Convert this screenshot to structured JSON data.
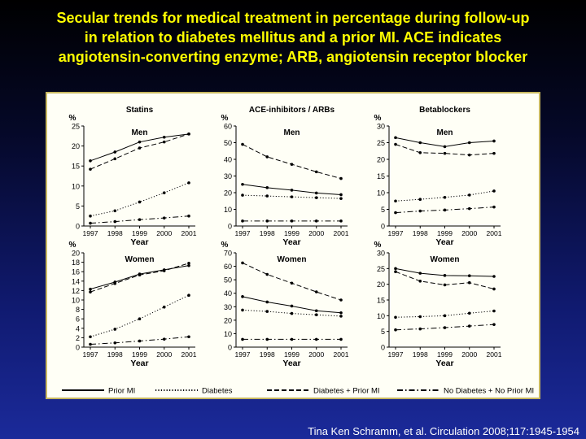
{
  "title": "Secular trends for medical treatment in percentage during follow-up\nin relation to diabetes mellitus and a prior MI. ACE indicates\nangiotensin-converting enzyme; ARB, angiotensin receptor blocker",
  "citation": "Tina Ken Schramm, et al. Circulation 2008;117:1945-1954",
  "colors": {
    "title": "#ffff00",
    "background_top": "#000000",
    "background_bottom": "#1b2a9a",
    "panel": "#fffff6"
  },
  "legend": [
    {
      "label": "Prior MI",
      "dash": "solid"
    },
    {
      "label": "Diabetes",
      "dash": "dotted"
    },
    {
      "label": "Diabetes + Prior MI",
      "dash": "dashed"
    },
    {
      "label": "No Diabetes + No Prior MI",
      "dash": "dashdot"
    }
  ],
  "chart_data": [
    {
      "type": "line",
      "title": "Statins",
      "subtitle": "Men",
      "ylabel": "%",
      "xlabel": "Year",
      "x": [
        "1997",
        "1998",
        "1999",
        "2000",
        "2001"
      ],
      "ylim": [
        0,
        25
      ],
      "yticks": [
        0,
        5,
        10,
        15,
        20,
        25
      ],
      "series": [
        {
          "name": "Prior MI",
          "values": [
            16.3,
            18.5,
            21.0,
            22.2,
            23.0
          ]
        },
        {
          "name": "Diabetes",
          "values": [
            2.5,
            3.8,
            6.0,
            8.3,
            10.8
          ]
        },
        {
          "name": "Diabetes + Prior MI",
          "values": [
            14.2,
            16.8,
            19.5,
            21.0,
            23.0
          ]
        },
        {
          "name": "No Diabetes + No Prior MI",
          "values": [
            0.7,
            1.1,
            1.6,
            2.0,
            2.5
          ]
        }
      ]
    },
    {
      "type": "line",
      "title": "ACE-inhibitors / ARBs",
      "subtitle": "Men",
      "ylabel": "%",
      "xlabel": "Year",
      "x": [
        "1997",
        "1998",
        "1999",
        "2000",
        "2001"
      ],
      "ylim": [
        0,
        60
      ],
      "yticks": [
        0,
        10,
        20,
        30,
        40,
        50,
        60
      ],
      "series": [
        {
          "name": "Prior MI",
          "values": [
            25.0,
            23.0,
            21.5,
            19.8,
            18.8
          ]
        },
        {
          "name": "Diabetes",
          "values": [
            18.5,
            18.0,
            17.5,
            17.0,
            16.5
          ]
        },
        {
          "name": "Diabetes + Prior MI",
          "values": [
            49.0,
            41.5,
            37.0,
            32.5,
            28.5
          ]
        },
        {
          "name": "No Diabetes + No Prior MI",
          "values": [
            3.0,
            3.0,
            3.0,
            3.0,
            3.0
          ]
        }
      ]
    },
    {
      "type": "line",
      "title": "Betablockers",
      "subtitle": "Men",
      "ylabel": "%",
      "xlabel": "Year",
      "x": [
        "1997",
        "1998",
        "1999",
        "2000",
        "2001"
      ],
      "ylim": [
        0,
        30
      ],
      "yticks": [
        0,
        5,
        10,
        15,
        20,
        25,
        30
      ],
      "series": [
        {
          "name": "Prior MI",
          "values": [
            26.5,
            25.0,
            23.8,
            25.0,
            25.5
          ]
        },
        {
          "name": "Diabetes",
          "values": [
            7.5,
            8.0,
            8.6,
            9.3,
            10.5
          ]
        },
        {
          "name": "Diabetes + Prior MI",
          "values": [
            24.5,
            22.0,
            21.8,
            21.3,
            21.8
          ]
        },
        {
          "name": "No Diabetes + No Prior MI",
          "values": [
            4.0,
            4.5,
            4.8,
            5.2,
            5.7
          ]
        }
      ]
    },
    {
      "type": "line",
      "title": "",
      "subtitle": "Women",
      "ylabel": "%",
      "xlabel": "Year",
      "x": [
        "1997",
        "1998",
        "1999",
        "2000",
        "2001"
      ],
      "ylim": [
        0,
        20
      ],
      "yticks": [
        0,
        2,
        4,
        6,
        8,
        10,
        12,
        14,
        16,
        18,
        20
      ],
      "series": [
        {
          "name": "Prior MI",
          "values": [
            12.3,
            13.8,
            15.5,
            16.4,
            17.3
          ]
        },
        {
          "name": "Diabetes",
          "values": [
            2.2,
            3.8,
            6.0,
            8.5,
            11.0
          ]
        },
        {
          "name": "Diabetes + Prior MI",
          "values": [
            11.7,
            13.5,
            15.3,
            16.2,
            17.8
          ]
        },
        {
          "name": "No Diabetes + No Prior MI",
          "values": [
            0.6,
            0.9,
            1.3,
            1.7,
            2.2
          ]
        }
      ]
    },
    {
      "type": "line",
      "title": "",
      "subtitle": "Women",
      "ylabel": "%",
      "xlabel": "Year",
      "x": [
        "1997",
        "1998",
        "1999",
        "2000",
        "2001"
      ],
      "ylim": [
        0,
        70
      ],
      "yticks": [
        0,
        10,
        20,
        30,
        40,
        50,
        60,
        70
      ],
      "series": [
        {
          "name": "Prior MI",
          "values": [
            37.5,
            33.5,
            30.5,
            27.0,
            25.5
          ]
        },
        {
          "name": "Diabetes",
          "values": [
            27.5,
            26.5,
            25.0,
            24.0,
            23.0
          ]
        },
        {
          "name": "Diabetes + Prior MI",
          "values": [
            62.5,
            54.0,
            47.5,
            41.0,
            35.0
          ]
        },
        {
          "name": "No Diabetes + No Prior MI",
          "values": [
            5.8,
            5.8,
            5.8,
            5.8,
            5.8
          ]
        }
      ]
    },
    {
      "type": "line",
      "title": "",
      "subtitle": "Women",
      "ylabel": "%",
      "xlabel": "Year",
      "x": [
        "1997",
        "1998",
        "1999",
        "2000",
        "2001"
      ],
      "ylim": [
        0,
        30
      ],
      "yticks": [
        0,
        5,
        10,
        15,
        20,
        25,
        30
      ],
      "series": [
        {
          "name": "Prior MI",
          "values": [
            25.0,
            23.5,
            22.8,
            22.7,
            22.5
          ]
        },
        {
          "name": "Diabetes",
          "values": [
            9.5,
            9.7,
            10.0,
            10.8,
            11.5
          ]
        },
        {
          "name": "Diabetes + Prior MI",
          "values": [
            24.0,
            21.0,
            19.8,
            20.5,
            18.5
          ]
        },
        {
          "name": "No Diabetes + No Prior MI",
          "values": [
            5.5,
            5.8,
            6.2,
            6.7,
            7.2
          ]
        }
      ]
    }
  ]
}
